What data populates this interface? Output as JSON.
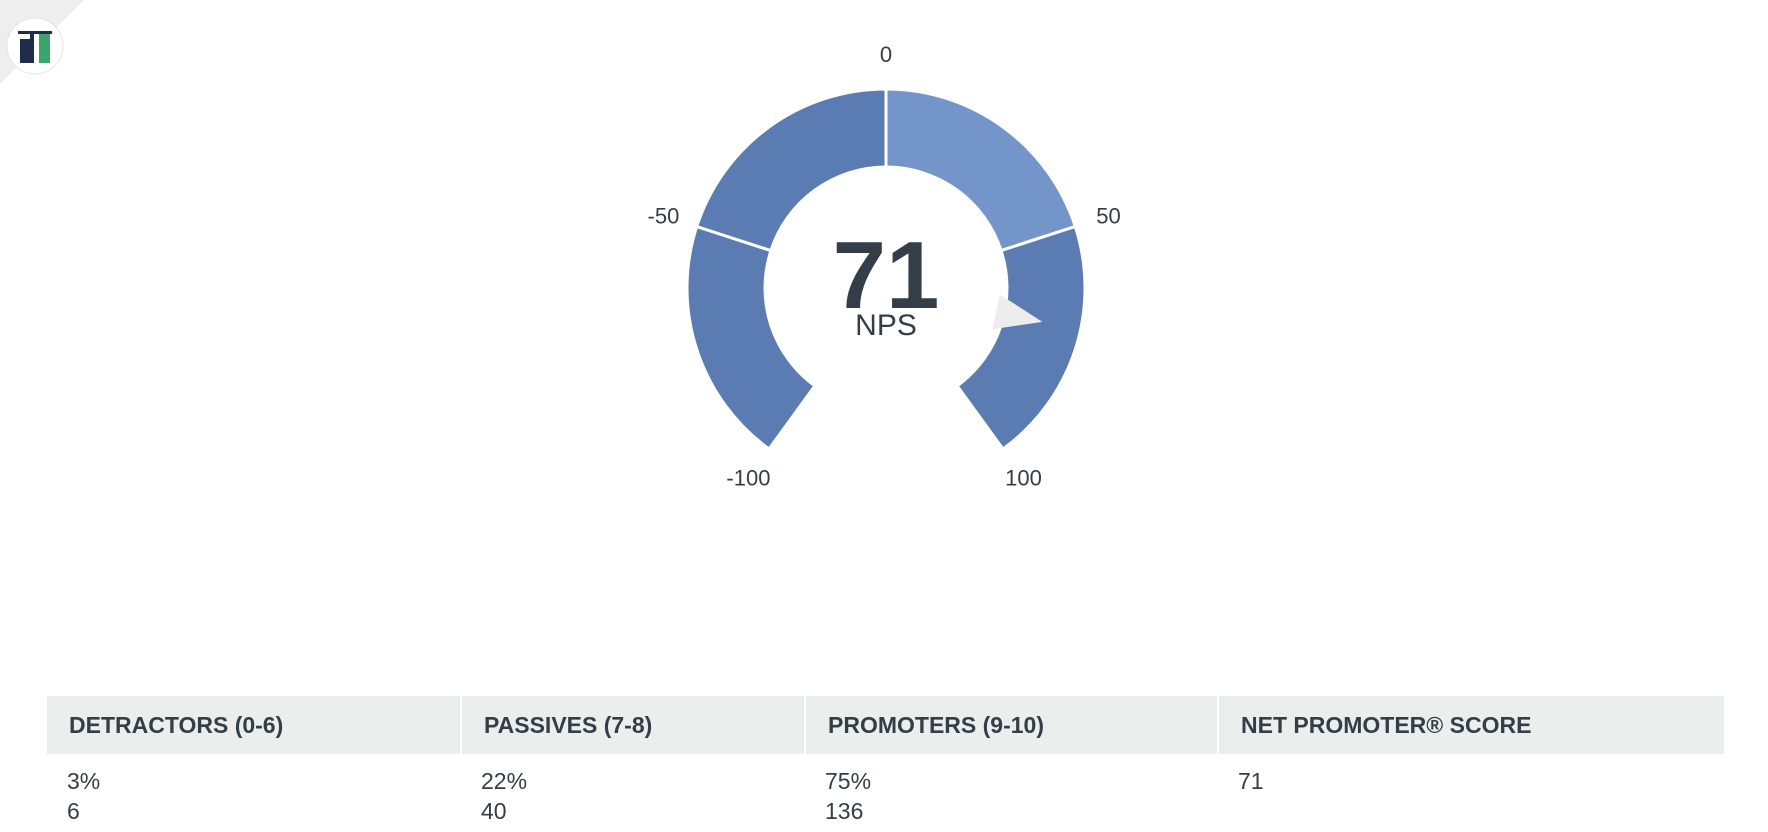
{
  "colors": {
    "segment_dark": "#5b7bb3",
    "segment_light": "#7395ca",
    "needle": "#ededed",
    "text": "#333e48",
    "header_bg": "#eceeee"
  },
  "chart_data": {
    "type": "gauge",
    "title": "",
    "value": 71,
    "value_label": "NPS",
    "range": [
      -100,
      100
    ],
    "segments": [
      {
        "from": -100,
        "to": -50,
        "color": "#5b7bb3"
      },
      {
        "from": -50,
        "to": 0,
        "color": "#5b7bb3"
      },
      {
        "from": 0,
        "to": 50,
        "color": "#7395ca"
      },
      {
        "from": 50,
        "to": 100,
        "color": "#5b7bb3"
      }
    ],
    "tick_labels": [
      "-100",
      "-50",
      "0",
      "50",
      "100"
    ],
    "ticks": [
      -100,
      -50,
      0,
      50,
      100
    ]
  },
  "table": {
    "headers": [
      "DETRACTORS (0-6)",
      "PASSIVES (7-8)",
      "PROMOTERS (9-10)",
      "NET PROMOTER® SCORE"
    ],
    "rows": [
      {
        "percent": "3%",
        "count": "6"
      },
      {
        "percent": "22%",
        "count": "40"
      },
      {
        "percent": "75%",
        "count": "136"
      },
      {
        "percent": "71",
        "count": ""
      }
    ]
  }
}
